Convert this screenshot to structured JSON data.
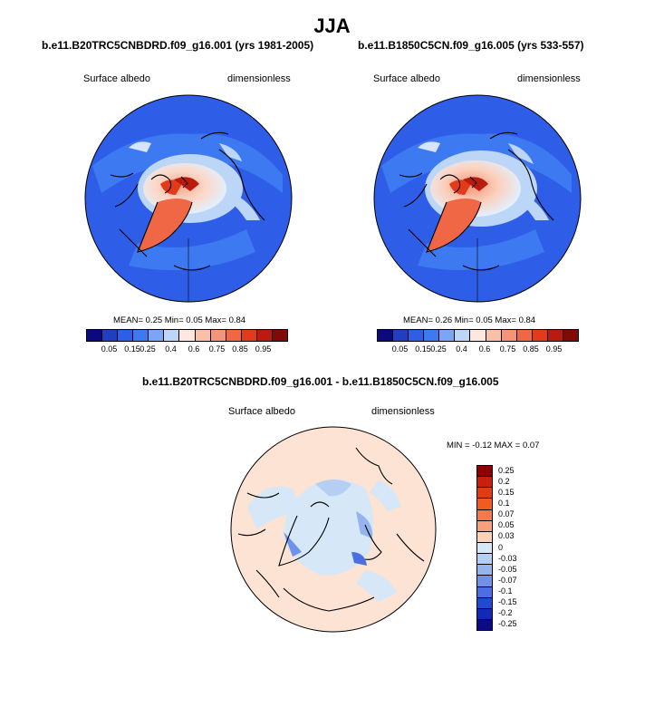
{
  "title": "JJA",
  "panels": [
    {
      "case": "b.e11.B20TRC5CNBDRD.f09_g16.001 (yrs 1981-2005)",
      "variable": "Surface albedo",
      "units": "dimensionless",
      "stats": {
        "mean_label": "MEAN=",
        "mean": "0.25",
        "min_label": "Min=",
        "min": "0.05",
        "max_label": "Max=",
        "max": "0.84"
      }
    },
    {
      "case": "b.e11.B1850C5CN.f09_g16.005 (yrs 533-557)",
      "variable": "Surface albedo",
      "units": "dimensionless",
      "stats": {
        "mean_label": "MEAN=",
        "mean": "0.26",
        "min_label": "Min=",
        "min": "0.05",
        "max_label": "Max=",
        "max": "0.84"
      }
    }
  ],
  "abs_colorbar": {
    "colors": [
      "#0a0a7e",
      "#1f3fbf",
      "#2e5ee8",
      "#3d7af2",
      "#7aa6f5",
      "#bcd6f7",
      "#fde8df",
      "#f9c0a8",
      "#f49478",
      "#ef6744",
      "#e43a1c",
      "#bb1a0f",
      "#7f0a06"
    ],
    "ticks": [
      "0.05",
      "0.15",
      "0.25",
      "0.4",
      "0.6",
      "0.75",
      "0.85",
      "0.95"
    ]
  },
  "diff": {
    "title": "b.e11.B20TRC5CNBDRD.f09_g16.001 - b.e11.B1850C5CN.f09_g16.005",
    "variable": "Surface albedo",
    "units": "dimensionless",
    "minmax": {
      "min_label": "MIN =",
      "min": "-0.12",
      "max_label": "MAX =",
      "max": "0.07"
    },
    "colorbar": {
      "colors": [
        "#8b0000",
        "#c8200e",
        "#e23a12",
        "#f25a1e",
        "#f57a48",
        "#f9a07a",
        "#fcd2b6",
        "#d6e7f7",
        "#b5cff2",
        "#93b4ee",
        "#6e92ea",
        "#4a6fe2",
        "#2248d8",
        "#1228b8",
        "#0a0a8a"
      ],
      "ticks": [
        "0.25",
        "0.2",
        "0.15",
        "0.1",
        "0.07",
        "0.05",
        "0.03",
        "0",
        "-0.03",
        "-0.05",
        "-0.07",
        "-0.1",
        "-0.15",
        "-0.2",
        "-0.25"
      ]
    }
  }
}
